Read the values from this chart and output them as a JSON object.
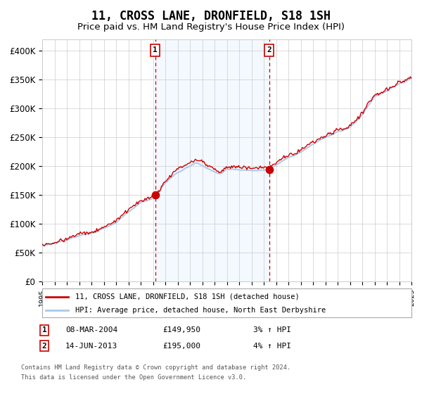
{
  "title": "11, CROSS LANE, DRONFIELD, S18 1SH",
  "subtitle": "Price paid vs. HM Land Registry's House Price Index (HPI)",
  "title_fontsize": 12,
  "subtitle_fontsize": 9.5,
  "x_start_year": 1995,
  "x_end_year": 2025,
  "ylim": [
    0,
    420000
  ],
  "yticks": [
    0,
    50000,
    100000,
    150000,
    200000,
    250000,
    300000,
    350000,
    400000
  ],
  "ytick_labels": [
    "£0",
    "£50K",
    "£100K",
    "£150K",
    "£200K",
    "£250K",
    "£300K",
    "£350K",
    "£400K"
  ],
  "sale1_date_decimal": 2004.19,
  "sale1_price": 149950,
  "sale1_label": "1",
  "sale1_date_str": "08-MAR-2004",
  "sale1_pct": "3%",
  "sale2_date_decimal": 2013.45,
  "sale2_price": 195000,
  "sale2_label": "2",
  "sale2_date_str": "14-JUN-2013",
  "sale2_pct": "4%",
  "hpi_line_color": "#aac8e8",
  "price_line_color": "#cc0000",
  "sale_dot_color": "#cc0000",
  "shaded_region_color": "#ddeeff",
  "vline_color": "#cc0000",
  "grid_color": "#cccccc",
  "background_color": "#ffffff",
  "legend_line1": "11, CROSS LANE, DRONFIELD, S18 1SH (detached house)",
  "legend_line2": "HPI: Average price, detached house, North East Derbyshire",
  "footer1": "Contains HM Land Registry data © Crown copyright and database right 2024.",
  "footer2": "This data is licensed under the Open Government Licence v3.0."
}
